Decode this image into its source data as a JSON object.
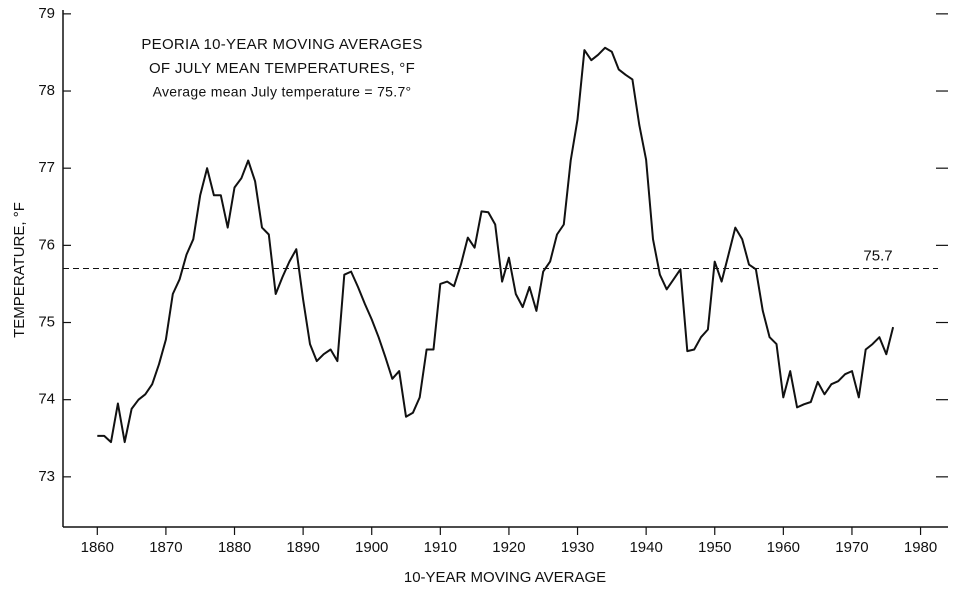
{
  "chart_data": {
    "type": "line",
    "title": [
      "PEORIA 10-YEAR MOVING AVERAGES",
      "OF JULY MEAN TEMPERATURES, °F",
      "Average mean July temperature = 75.7°"
    ],
    "xlabel": "10-YEAR MOVING AVERAGE",
    "ylabel": "TEMPERATURE, °F",
    "color": "#111111",
    "x": [
      1860,
      1861,
      1862,
      1863,
      1864,
      1865,
      1866,
      1867,
      1868,
      1869,
      1870,
      1871,
      1872,
      1873,
      1874,
      1875,
      1876,
      1877,
      1878,
      1879,
      1880,
      1881,
      1882,
      1883,
      1884,
      1885,
      1886,
      1887,
      1888,
      1889,
      1890,
      1891,
      1892,
      1893,
      1894,
      1895,
      1896,
      1897,
      1898,
      1899,
      1900,
      1901,
      1902,
      1903,
      1904,
      1905,
      1906,
      1907,
      1908,
      1909,
      1910,
      1911,
      1912,
      1913,
      1914,
      1915,
      1916,
      1917,
      1918,
      1919,
      1920,
      1921,
      1922,
      1923,
      1924,
      1925,
      1926,
      1927,
      1928,
      1929,
      1930,
      1931,
      1932,
      1933,
      1934,
      1935,
      1936,
      1937,
      1938,
      1939,
      1940,
      1941,
      1942,
      1943,
      1944,
      1945,
      1946,
      1947,
      1948,
      1949,
      1950,
      1951,
      1952,
      1953,
      1954,
      1955,
      1956,
      1957,
      1958,
      1959,
      1960,
      1961,
      1962,
      1963,
      1964,
      1965,
      1966,
      1967,
      1968,
      1969,
      1970,
      1971,
      1972,
      1973,
      1974,
      1975,
      1976
    ],
    "values": [
      73.53,
      73.53,
      73.45,
      73.95,
      73.45,
      73.88,
      74.0,
      74.07,
      74.2,
      74.46,
      74.78,
      75.37,
      75.56,
      75.88,
      76.08,
      76.65,
      77.0,
      76.65,
      76.65,
      76.23,
      76.75,
      76.87,
      77.1,
      76.83,
      76.23,
      76.14,
      75.37,
      75.59,
      75.79,
      75.95,
      75.3,
      74.72,
      74.5,
      74.59,
      74.65,
      74.5,
      75.62,
      75.66,
      75.46,
      75.24,
      75.04,
      74.81,
      74.55,
      74.27,
      74.37,
      73.78,
      73.83,
      74.03,
      74.65,
      74.65,
      75.5,
      75.53,
      75.47,
      75.75,
      76.1,
      75.97,
      76.44,
      76.43,
      76.27,
      75.53,
      75.84,
      75.37,
      75.2,
      75.46,
      75.15,
      75.66,
      75.79,
      76.14,
      76.27,
      77.1,
      77.63,
      78.53,
      78.4,
      78.47,
      78.56,
      78.51,
      78.28,
      78.21,
      78.15,
      77.56,
      77.11,
      76.08,
      75.62,
      75.43,
      75.56,
      75.69,
      74.63,
      74.65,
      74.81,
      74.91,
      75.79,
      75.53,
      75.88,
      76.23,
      76.08,
      75.75,
      75.69,
      75.15,
      74.81,
      74.72,
      74.03,
      74.37,
      73.9,
      73.94,
      73.97,
      74.23,
      74.07,
      74.2,
      74.24,
      74.33,
      74.37,
      74.03,
      74.65,
      74.72,
      74.81,
      74.59,
      74.94
    ],
    "reference_line": 75.7,
    "xlim": [
      1855,
      1984
    ],
    "ylim": [
      72.35,
      79.05
    ],
    "xticks": [
      1860,
      1870,
      1880,
      1890,
      1900,
      1910,
      1920,
      1930,
      1940,
      1950,
      1960,
      1970,
      1980
    ],
    "yticks": [
      73,
      74,
      75,
      76,
      77,
      78,
      79
    ]
  }
}
